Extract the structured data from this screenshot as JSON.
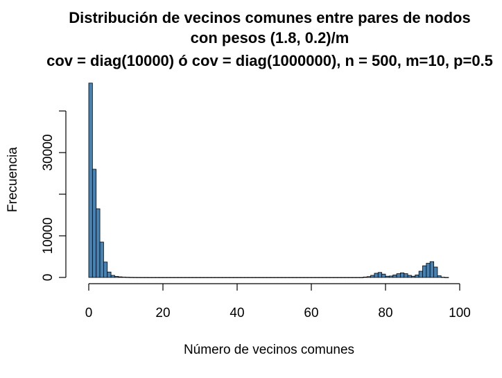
{
  "chart_data": {
    "type": "bar",
    "title": [
      "Distribución de vecinos comunes entre pares de nodos",
      "con pesos (1.8, 0.2)/m",
      "cov = diag(10000) ó cov = diag(1000000), n = 500, m=10, p=0.5"
    ],
    "xlabel": "Número de vecinos comunes",
    "ylabel": "Frecuencia",
    "xlim": [
      0,
      100
    ],
    "ylim": [
      0,
      47000
    ],
    "x_ticks": [
      0,
      20,
      40,
      60,
      80,
      100
    ],
    "y_ticks": [
      0,
      10000,
      30000
    ],
    "y_ticks_unlabeled": [
      20000,
      40000
    ],
    "bin_width": 1,
    "bar_color": "#4682B4",
    "bar_edge_color": "#000000",
    "grid": false,
    "bins_start": [
      0,
      1,
      2,
      3,
      4,
      5,
      6,
      7,
      8,
      9,
      10,
      11,
      12,
      13,
      14,
      15,
      16,
      17,
      18,
      19,
      20,
      21,
      22,
      23,
      24,
      25,
      26,
      27,
      28,
      29,
      30,
      31,
      32,
      33,
      34,
      35,
      36,
      37,
      38,
      39,
      40,
      41,
      42,
      43,
      44,
      45,
      46,
      47,
      48,
      49,
      50,
      51,
      52,
      53,
      54,
      55,
      56,
      57,
      58,
      59,
      60,
      61,
      62,
      63,
      64,
      65,
      66,
      67,
      68,
      69,
      70,
      71,
      72,
      73,
      74,
      75,
      76,
      77,
      78,
      79,
      80,
      81,
      82,
      83,
      84,
      85,
      86,
      87,
      88,
      89,
      90,
      91,
      92,
      93,
      94,
      95,
      96
    ],
    "values": [
      46700,
      26000,
      16500,
      8500,
      3700,
      1300,
      500,
      250,
      150,
      80,
      50,
      30,
      20,
      15,
      10,
      10,
      5,
      5,
      5,
      5,
      5,
      5,
      5,
      5,
      5,
      5,
      5,
      5,
      5,
      5,
      5,
      5,
      5,
      5,
      5,
      5,
      5,
      5,
      5,
      5,
      5,
      5,
      5,
      5,
      5,
      5,
      5,
      5,
      5,
      5,
      5,
      5,
      5,
      5,
      5,
      5,
      5,
      5,
      5,
      5,
      5,
      5,
      5,
      5,
      5,
      5,
      5,
      5,
      5,
      5,
      5,
      5,
      5,
      5,
      100,
      200,
      500,
      1000,
      1200,
      800,
      300,
      350,
      600,
      900,
      1100,
      900,
      500,
      300,
      600,
      1500,
      2800,
      3400,
      3800,
      2500,
      400,
      60,
      10
    ]
  }
}
